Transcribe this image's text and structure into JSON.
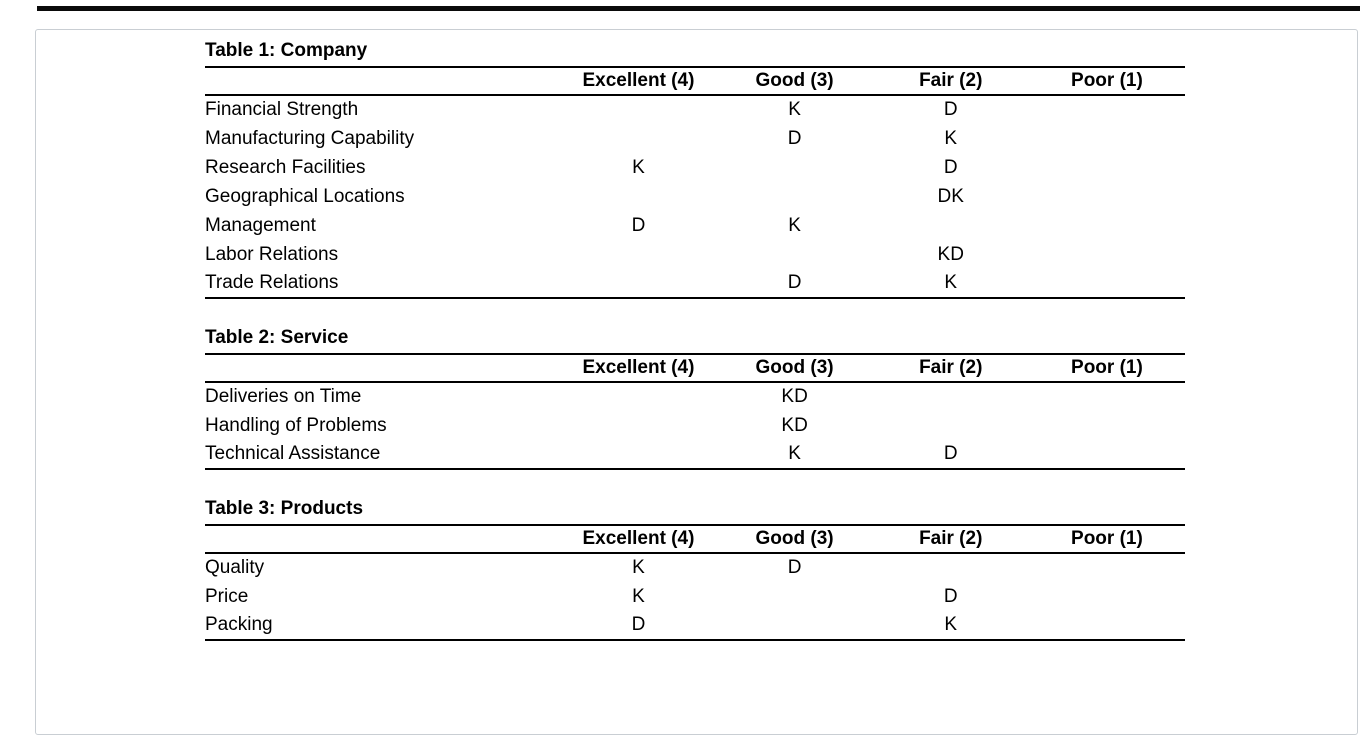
{
  "page": {
    "background": "#ffffff",
    "border_color": "#c9ced3",
    "rule_color": "#000000",
    "text_color": "#000000"
  },
  "columns": [
    "Excellent (4)",
    "Good (3)",
    "Fair (2)",
    "Poor (1)"
  ],
  "tables": [
    {
      "title": "Table 1: Company",
      "rows": [
        {
          "label": "Financial Strength",
          "cells": [
            "",
            "K",
            "D",
            ""
          ]
        },
        {
          "label": "Manufacturing Capability",
          "cells": [
            "",
            "D",
            "K",
            ""
          ]
        },
        {
          "label": "Research Facilities",
          "cells": [
            "K",
            "",
            "D",
            ""
          ]
        },
        {
          "label": "Geographical Locations",
          "cells": [
            "",
            "",
            "DK",
            ""
          ]
        },
        {
          "label": "Management",
          "cells": [
            "D",
            "K",
            "",
            ""
          ]
        },
        {
          "label": "Labor Relations",
          "cells": [
            "",
            "",
            "KD",
            ""
          ]
        },
        {
          "label": "Trade Relations",
          "cells": [
            "",
            "D",
            "K",
            ""
          ]
        }
      ]
    },
    {
      "title": "Table 2: Service",
      "rows": [
        {
          "label": "Deliveries on Time",
          "cells": [
            "",
            "KD",
            "",
            ""
          ]
        },
        {
          "label": "Handling of Problems",
          "cells": [
            "",
            "KD",
            "",
            ""
          ]
        },
        {
          "label": "Technical Assistance",
          "cells": [
            "",
            "K",
            "D",
            ""
          ]
        }
      ]
    },
    {
      "title": "Table 3: Products",
      "rows": [
        {
          "label": "Quality",
          "cells": [
            "K",
            "D",
            "",
            ""
          ]
        },
        {
          "label": "Price",
          "cells": [
            "K",
            "",
            "D",
            ""
          ]
        },
        {
          "label": "Packing",
          "cells": [
            "D",
            "",
            "K",
            ""
          ]
        }
      ]
    }
  ]
}
